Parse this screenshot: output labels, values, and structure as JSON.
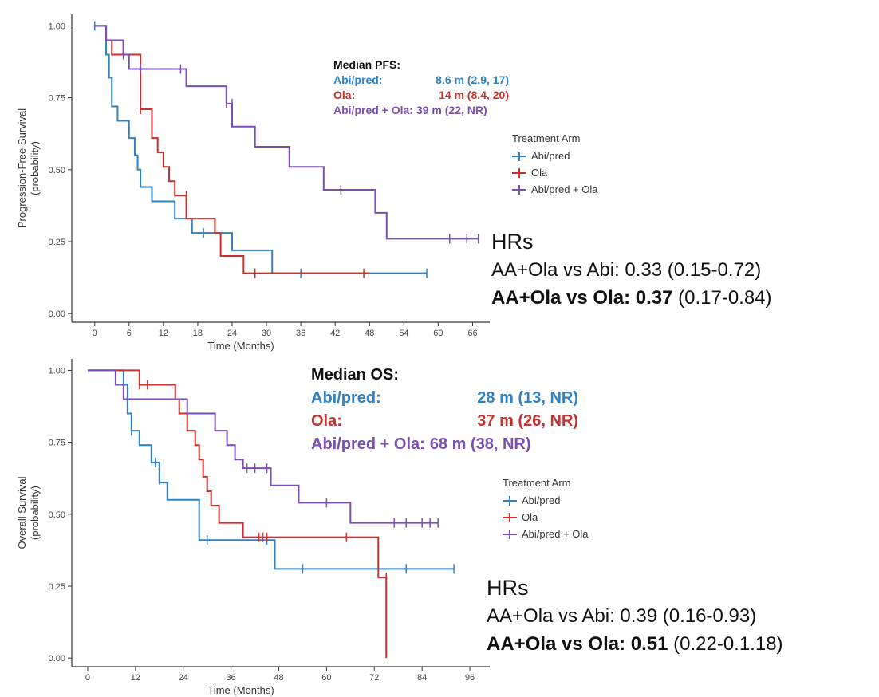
{
  "colors": {
    "abi": "#2f82c4",
    "ola": "#c8312e",
    "combo": "#7a4fb0"
  },
  "chart_data": [
    {
      "type": "line",
      "subtype": "kaplan-meier",
      "xlabel": "Time (Months)",
      "ylabel_line1": "Progression-Free Survival",
      "ylabel_line2": "(probability)",
      "xlim": [
        -4,
        69
      ],
      "ylim": [
        -0.03,
        1.04
      ],
      "xticks": [
        0,
        6,
        12,
        18,
        24,
        30,
        36,
        42,
        48,
        54,
        60,
        66
      ],
      "yticks": [
        0.0,
        0.25,
        0.5,
        0.75,
        1.0
      ],
      "ytick_labels": [
        "0.00",
        "0.25",
        "0.50",
        "0.75",
        "1.00"
      ],
      "legend_title": "Treatment Arm",
      "legend_position": "right",
      "series": [
        {
          "name": "Abi/pred",
          "color_key": "abi",
          "steps": [
            [
              0,
              1.0
            ],
            [
              2,
              0.9
            ],
            [
              2.5,
              0.82
            ],
            [
              3,
              0.72
            ],
            [
              4,
              0.67
            ],
            [
              6,
              0.61
            ],
            [
              7,
              0.55
            ],
            [
              7.5,
              0.5
            ],
            [
              8,
              0.44
            ],
            [
              10,
              0.39
            ],
            [
              14,
              0.33
            ],
            [
              17,
              0.28
            ],
            [
              24,
              0.22
            ],
            [
              31,
              0.14
            ],
            [
              58,
              0.14
            ]
          ],
          "censors": [
            [
              0,
              1.0
            ],
            [
              19,
              0.28
            ],
            [
              36,
              0.14
            ],
            [
              58,
              0.14
            ]
          ]
        },
        {
          "name": "Ola",
          "color_key": "ola",
          "steps": [
            [
              0,
              1.0
            ],
            [
              2,
              0.95
            ],
            [
              3,
              0.9
            ],
            [
              8,
              0.71
            ],
            [
              10,
              0.61
            ],
            [
              11,
              0.56
            ],
            [
              12,
              0.51
            ],
            [
              13,
              0.46
            ],
            [
              14,
              0.41
            ],
            [
              16,
              0.33
            ],
            [
              21,
              0.28
            ],
            [
              22,
              0.2
            ],
            [
              26,
              0.14
            ],
            [
              48,
              0.14
            ]
          ],
          "censors": [
            [
              8,
              0.85
            ],
            [
              8,
              0.71
            ],
            [
              16,
              0.41
            ],
            [
              28,
              0.14
            ],
            [
              47,
              0.14
            ]
          ]
        },
        {
          "name": "Abi/pred + Ola",
          "color_key": "combo",
          "steps": [
            [
              0,
              1.0
            ],
            [
              2,
              0.95
            ],
            [
              5,
              0.9
            ],
            [
              6,
              0.85
            ],
            [
              10,
              0.85
            ],
            [
              16,
              0.79
            ],
            [
              23,
              0.73
            ],
            [
              24,
              0.65
            ],
            [
              28,
              0.58
            ],
            [
              34,
              0.51
            ],
            [
              40,
              0.43
            ],
            [
              49,
              0.35
            ],
            [
              51,
              0.26
            ],
            [
              67,
              0.26
            ]
          ],
          "censors": [
            [
              5,
              0.9
            ],
            [
              8,
              0.85
            ],
            [
              15,
              0.85
            ],
            [
              23,
              0.73
            ],
            [
              24,
              0.73
            ],
            [
              43,
              0.43
            ],
            [
              62,
              0.26
            ],
            [
              65,
              0.26
            ],
            [
              67,
              0.26
            ]
          ]
        }
      ]
    },
    {
      "type": "line",
      "subtype": "kaplan-meier",
      "xlabel": "Time (Months)",
      "ylabel_line1": "Overall Survival",
      "ylabel_line2": "(probability)",
      "xlim": [
        -4,
        101
      ],
      "ylim": [
        -0.03,
        1.04
      ],
      "xticks": [
        0,
        12,
        24,
        36,
        48,
        60,
        72,
        84,
        96
      ],
      "yticks": [
        0.0,
        0.25,
        0.5,
        0.75,
        1.0
      ],
      "ytick_labels": [
        "0.00",
        "0.25",
        "0.50",
        "0.75",
        "1.00"
      ],
      "legend_title": "Treatment Arm",
      "legend_position": "right",
      "series": [
        {
          "name": "Abi/pred",
          "color_key": "abi",
          "steps": [
            [
              0,
              1.0
            ],
            [
              9,
              0.95
            ],
            [
              10,
              0.85
            ],
            [
              11,
              0.79
            ],
            [
              13,
              0.74
            ],
            [
              16,
              0.68
            ],
            [
              18,
              0.61
            ],
            [
              20,
              0.55
            ],
            [
              28,
              0.41
            ],
            [
              47,
              0.31
            ],
            [
              92,
              0.31
            ]
          ],
          "censors": [
            [
              11,
              0.79
            ],
            [
              17,
              0.68
            ],
            [
              18,
              0.62
            ],
            [
              30,
              0.41
            ],
            [
              45,
              0.41
            ],
            [
              54,
              0.31
            ],
            [
              80,
              0.31
            ],
            [
              92,
              0.31
            ]
          ]
        },
        {
          "name": "Ola",
          "color_key": "ola",
          "steps": [
            [
              0,
              1.0
            ],
            [
              13,
              0.95
            ],
            [
              22,
              0.9
            ],
            [
              23,
              0.85
            ],
            [
              25,
              0.79
            ],
            [
              27,
              0.74
            ],
            [
              28,
              0.69
            ],
            [
              29,
              0.63
            ],
            [
              30,
              0.58
            ],
            [
              31,
              0.53
            ],
            [
              33,
              0.47
            ],
            [
              39,
              0.42
            ],
            [
              43,
              0.42
            ],
            [
              73,
              0.28
            ],
            [
              75,
              0.0
            ]
          ],
          "censors": [
            [
              13,
              0.95
            ],
            [
              15,
              0.95
            ],
            [
              43,
              0.42
            ],
            [
              44,
              0.42
            ],
            [
              45,
              0.42
            ],
            [
              65,
              0.42
            ],
            [
              75,
              0.28
            ]
          ]
        },
        {
          "name": "Abi/pred + Ola",
          "color_key": "combo",
          "steps": [
            [
              0,
              1.0
            ],
            [
              7,
              0.95
            ],
            [
              9,
              0.9
            ],
            [
              25,
              0.85
            ],
            [
              32,
              0.79
            ],
            [
              35,
              0.74
            ],
            [
              37,
              0.69
            ],
            [
              39,
              0.66
            ],
            [
              46,
              0.6
            ],
            [
              53,
              0.54
            ],
            [
              66,
              0.47
            ],
            [
              88,
              0.47
            ]
          ],
          "censors": [
            [
              40,
              0.66
            ],
            [
              42,
              0.66
            ],
            [
              45,
              0.66
            ],
            [
              60,
              0.54
            ],
            [
              77,
              0.47
            ],
            [
              80,
              0.47
            ],
            [
              84,
              0.47
            ],
            [
              86,
              0.47
            ],
            [
              88,
              0.47
            ]
          ]
        }
      ]
    }
  ],
  "pfs_median": {
    "title": "Median PFS:",
    "rows": [
      {
        "label": "Abi/pred:",
        "value": "8.6 m (2.9, 17)",
        "color_key": "abi"
      },
      {
        "label": "Ola:",
        "value": "14 m (8.4, 20)",
        "color_key": "ola"
      },
      {
        "label": "Abi/pred + Ola:",
        "value": "39 m (22, NR)",
        "color_key": "combo"
      }
    ]
  },
  "os_median": {
    "title": "Median OS:",
    "rows": [
      {
        "label": "Abi/pred:",
        "value": "28 m (13, NR)",
        "color_key": "abi"
      },
      {
        "label": "Ola:",
        "value": "37 m (26, NR)",
        "color_key": "ola"
      },
      {
        "label": "Abi/pred + Ola:",
        "value": "68 m (38, NR)",
        "color_key": "combo"
      }
    ]
  },
  "pfs_legend": {
    "title": "Treatment Arm",
    "items": [
      {
        "label": "Abi/pred",
        "color_key": "abi"
      },
      {
        "label": "Ola",
        "color_key": "ola"
      },
      {
        "label": "Abi/pred + Ola",
        "color_key": "combo"
      }
    ]
  },
  "os_legend": {
    "title": "Treatment Arm",
    "items": [
      {
        "label": "Abi/pred",
        "color_key": "abi"
      },
      {
        "label": "Ola",
        "color_key": "ola"
      },
      {
        "label": "Abi/pred + Ola",
        "color_key": "combo"
      }
    ]
  },
  "pfs_hr": {
    "title": "HRs",
    "line1": "AA+Ola vs Abi: 0.33 (0.15-0.72)",
    "line2_bold": "AA+Ola vs Ola: 0.37",
    "line2_rest": " (0.17-0.84)"
  },
  "os_hr": {
    "title": "HRs",
    "line1": "AA+Ola vs Abi: 0.39 (0.16-0.93)",
    "line2_bold": "AA+Ola vs Ola: 0.51",
    "line2_rest": " (0.22-0.1.18)"
  }
}
